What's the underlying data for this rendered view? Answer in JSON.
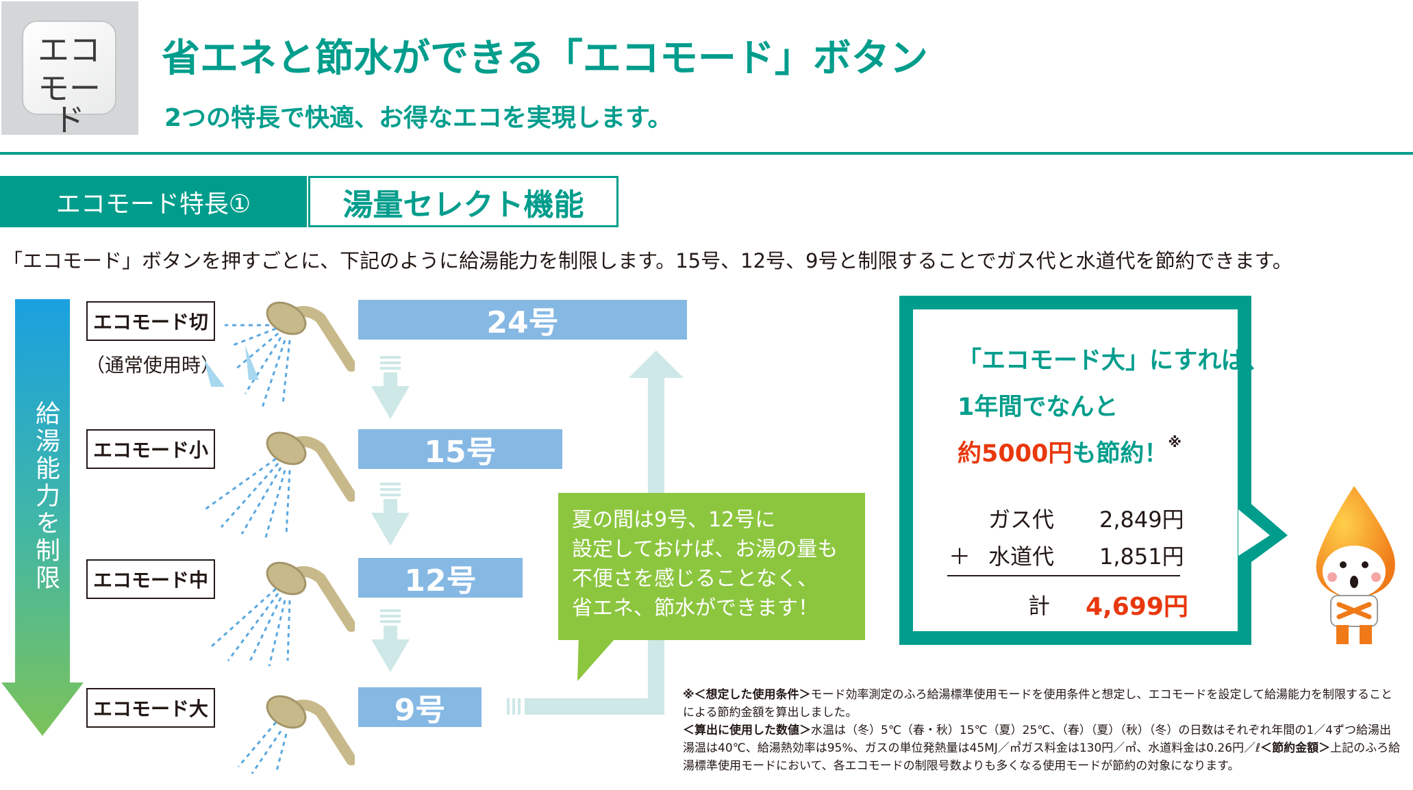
{
  "header": {
    "button_line1": "エコ",
    "button_line2": "モード",
    "title": "省エネと節水ができる「エコモード」ボタン",
    "subtitle": "2つの特長で快適、お得なエコを実現します。"
  },
  "feature": {
    "tab_label": "エコモード特長①",
    "tab_name": "湯量セレクト機能",
    "description": "「エコモード」ボタンを押すごとに、下記のように給湯能力を制限します。15号、12号、9号と制限することでガス代と水道代を節約できます。"
  },
  "arrow_label": "給湯能力を制限",
  "modes": [
    {
      "label": "エコモード切",
      "note": "（通常使用時）",
      "capacity": "24号"
    },
    {
      "label": "エコモード小",
      "capacity": "15号"
    },
    {
      "label": "エコモード中",
      "capacity": "12号"
    },
    {
      "label": "エコモード大",
      "capacity": "9号"
    }
  ],
  "tip": {
    "lines": [
      "夏の間は9号、12号に",
      "設定しておけば、お湯の量も",
      "不便さを感じることなく、",
      "省エネ、節水ができます！"
    ]
  },
  "result": {
    "line1": "「エコモード大」にすれば、",
    "line2": "1年間でなんと",
    "line3_red": "約5000円",
    "line3_rest": "も節約！",
    "line3_mark": "※",
    "gas_label": "ガス代",
    "gas_value": "2,849円",
    "plus": "＋",
    "water_label": "水道代",
    "water_value": "1,851円",
    "total_label": "計",
    "total_value": "4,699円"
  },
  "notes": {
    "n1_head": "※＜想定した使用条件＞",
    "n1_body": "モード効率測定のふろ給湯標準使用モードを使用条件と想定し、エコモードを設定して給湯能力を制限することによる節約金額を算出しました。",
    "n2_head": "＜算出に使用した数値＞",
    "n2_body": "水温は（冬）5℃（春・秋）15℃（夏）25℃、（春）（夏）（秋）（冬）の日数はそれぞれ年間の1／4ずつ給湯出湯温は40℃、給湯熱効率は95%、ガスの単位発熱量は45MJ／㎥ガス料金は130円／㎥、水道料金は0.26円／ℓ",
    "n3_head": "＜節約金額＞",
    "n3_body": "上記のふろ給湯標準使用モードにおいて、各エコモードの制限号数よりも多くなる使用モードが節約の対象になります。"
  },
  "colors": {
    "teal": "#009d8c",
    "blue_bar": "#86b8e4",
    "green": "#8cc63f",
    "red": "#e8380d"
  }
}
